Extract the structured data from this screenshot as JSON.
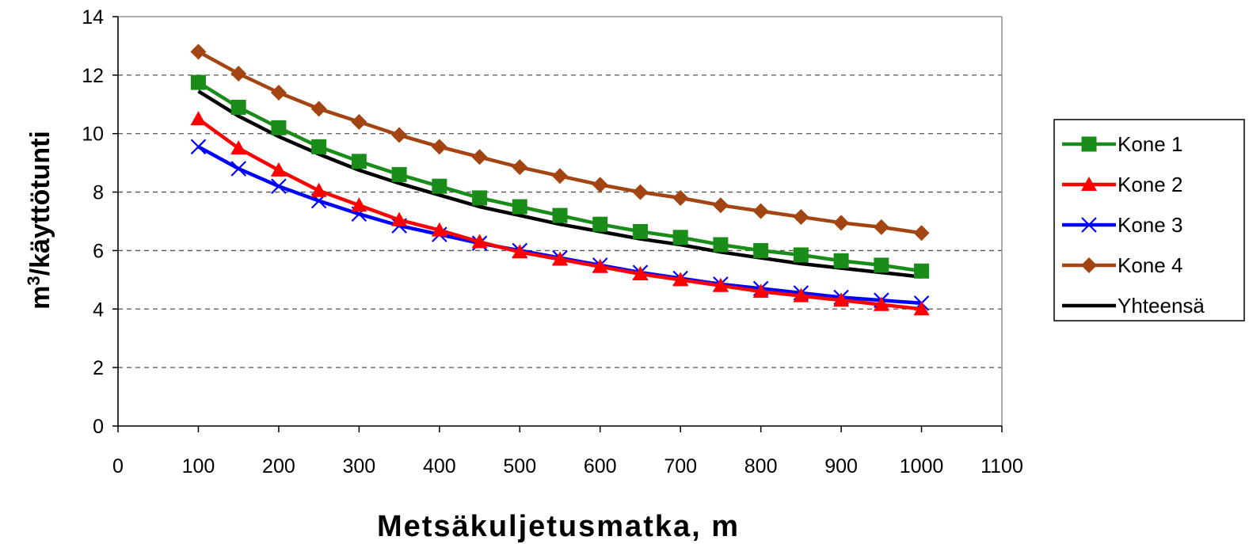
{
  "chart_data": {
    "type": "line",
    "xlabel": "Metsäkuljetusmatka, m",
    "ylabel_base": "m",
    "ylabel_sup": "3",
    "ylabel_rest": "/käyttötunti",
    "xlim": [
      0,
      1100
    ],
    "ylim": [
      0,
      14
    ],
    "xticks": [
      0,
      100,
      200,
      300,
      400,
      500,
      600,
      700,
      800,
      900,
      1000,
      1100
    ],
    "yticks": [
      0,
      2,
      4,
      6,
      8,
      10,
      12,
      14
    ],
    "grid": "horizontal dashed",
    "legend_position": "right",
    "x": [
      100,
      150,
      200,
      250,
      300,
      350,
      400,
      450,
      500,
      550,
      600,
      650,
      700,
      750,
      800,
      850,
      900,
      950,
      1000
    ],
    "series": [
      {
        "name": "Kone 1",
        "color": "#1a8c1a",
        "marker": "square",
        "values": [
          11.75,
          10.9,
          10.2,
          9.55,
          9.05,
          8.6,
          8.2,
          7.8,
          7.5,
          7.2,
          6.9,
          6.65,
          6.45,
          6.2,
          6.0,
          5.85,
          5.65,
          5.5,
          5.3
        ]
      },
      {
        "name": "Kone 2",
        "color": "#ff0000",
        "marker": "triangle",
        "values": [
          10.5,
          9.5,
          8.75,
          8.05,
          7.55,
          7.05,
          6.7,
          6.3,
          5.95,
          5.7,
          5.45,
          5.2,
          5.0,
          4.8,
          4.6,
          4.45,
          4.3,
          4.15,
          4.0
        ]
      },
      {
        "name": "Kone 3",
        "color": "#0000ff",
        "marker": "x",
        "values": [
          9.55,
          8.8,
          8.2,
          7.7,
          7.25,
          6.85,
          6.55,
          6.25,
          6.0,
          5.75,
          5.5,
          5.25,
          5.05,
          4.85,
          4.7,
          4.55,
          4.4,
          4.3,
          4.2
        ]
      },
      {
        "name": "Kone 4",
        "color": "#a34512",
        "marker": "diamond",
        "values": [
          12.8,
          12.05,
          11.4,
          10.85,
          10.4,
          9.95,
          9.55,
          9.2,
          8.85,
          8.55,
          8.25,
          8.0,
          7.8,
          7.55,
          7.35,
          7.15,
          6.95,
          6.8,
          6.6
        ]
      },
      {
        "name": "Yhteensä",
        "color": "#000000",
        "marker": "none",
        "values": [
          11.45,
          10.6,
          9.9,
          9.3,
          8.75,
          8.3,
          7.9,
          7.5,
          7.2,
          6.9,
          6.65,
          6.4,
          6.2,
          5.95,
          5.75,
          5.55,
          5.4,
          5.25,
          5.1
        ]
      }
    ]
  }
}
